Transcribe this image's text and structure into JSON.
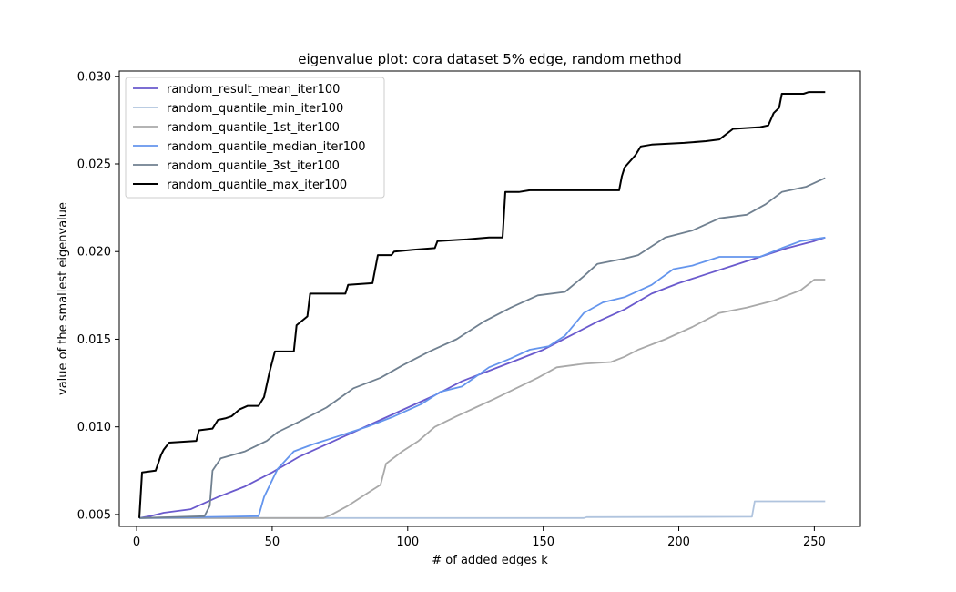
{
  "chart_data": {
    "type": "line",
    "title": "eigenvalue plot: cora dataset 5% edge, random method",
    "xlabel": "# of added edges k",
    "ylabel": "value of the smallest eigenvalue",
    "xlim": [
      -6.4,
      267
    ],
    "ylim": [
      0.00432,
      0.0303
    ],
    "xticks": [
      0,
      50,
      100,
      150,
      200,
      250
    ],
    "yticks": [
      0.005,
      0.01,
      0.015,
      0.02,
      0.025,
      0.03
    ],
    "xtick_labels": [
      "0",
      "50",
      "100",
      "150",
      "200",
      "250"
    ],
    "ytick_labels": [
      "0.005",
      "0.010",
      "0.015",
      "0.020",
      "0.025",
      "0.030"
    ],
    "legend_position": "top-left",
    "series": [
      {
        "name": "random_result_mean_iter100",
        "color": "#6a5acd",
        "points": [
          [
            1,
            0.0048
          ],
          [
            5,
            0.0049
          ],
          [
            10,
            0.0051
          ],
          [
            20,
            0.0053
          ],
          [
            30,
            0.006
          ],
          [
            40,
            0.0066
          ],
          [
            50,
            0.0074
          ],
          [
            60,
            0.0083
          ],
          [
            70,
            0.009
          ],
          [
            80,
            0.0097
          ],
          [
            90,
            0.0104
          ],
          [
            100,
            0.0111
          ],
          [
            110,
            0.0118
          ],
          [
            120,
            0.0126
          ],
          [
            130,
            0.0132
          ],
          [
            140,
            0.0138
          ],
          [
            150,
            0.0144
          ],
          [
            160,
            0.0152
          ],
          [
            170,
            0.016
          ],
          [
            180,
            0.0167
          ],
          [
            190,
            0.0176
          ],
          [
            200,
            0.0182
          ],
          [
            210,
            0.0187
          ],
          [
            220,
            0.0192
          ],
          [
            230,
            0.0197
          ],
          [
            240,
            0.0202
          ],
          [
            250,
            0.0206
          ],
          [
            254,
            0.0208
          ]
        ]
      },
      {
        "name": "random_quantile_min_iter100",
        "color": "#b0c4de",
        "points": [
          [
            1,
            0.0048
          ],
          [
            165,
            0.0048
          ],
          [
            166,
            0.00485
          ],
          [
            227,
            0.00487
          ],
          [
            228,
            0.00575
          ],
          [
            254,
            0.00575
          ]
        ]
      },
      {
        "name": "random_quantile_1st_iter100",
        "color": "#a9a9a9",
        "points": [
          [
            1,
            0.0048
          ],
          [
            69,
            0.0048
          ],
          [
            72,
            0.005
          ],
          [
            78,
            0.0055
          ],
          [
            85,
            0.0062
          ],
          [
            90,
            0.0067
          ],
          [
            92,
            0.0079
          ],
          [
            98,
            0.0086
          ],
          [
            104,
            0.0092
          ],
          [
            110,
            0.01
          ],
          [
            118,
            0.0106
          ],
          [
            125,
            0.0111
          ],
          [
            132,
            0.0116
          ],
          [
            140,
            0.0122
          ],
          [
            148,
            0.0128
          ],
          [
            155,
            0.0134
          ],
          [
            165,
            0.0136
          ],
          [
            175,
            0.0137
          ],
          [
            180,
            0.014
          ],
          [
            185,
            0.0144
          ],
          [
            195,
            0.015
          ],
          [
            205,
            0.0157
          ],
          [
            215,
            0.0165
          ],
          [
            225,
            0.0168
          ],
          [
            235,
            0.0172
          ],
          [
            240,
            0.0175
          ],
          [
            245,
            0.0178
          ],
          [
            250,
            0.0184
          ],
          [
            254,
            0.0184
          ]
        ]
      },
      {
        "name": "random_quantile_median_iter100",
        "color": "#6495ed",
        "points": [
          [
            1,
            0.0048
          ],
          [
            45,
            0.0049
          ],
          [
            47,
            0.006
          ],
          [
            52,
            0.0076
          ],
          [
            58,
            0.0086
          ],
          [
            65,
            0.009
          ],
          [
            75,
            0.0095
          ],
          [
            85,
            0.01
          ],
          [
            95,
            0.0106
          ],
          [
            105,
            0.0113
          ],
          [
            112,
            0.012
          ],
          [
            120,
            0.0123
          ],
          [
            130,
            0.0134
          ],
          [
            138,
            0.0139
          ],
          [
            145,
            0.0144
          ],
          [
            152,
            0.0146
          ],
          [
            158,
            0.0152
          ],
          [
            165,
            0.0165
          ],
          [
            172,
            0.0171
          ],
          [
            180,
            0.0174
          ],
          [
            190,
            0.0181
          ],
          [
            198,
            0.019
          ],
          [
            205,
            0.0192
          ],
          [
            215,
            0.0197
          ],
          [
            230,
            0.0197
          ],
          [
            238,
            0.0202
          ],
          [
            245,
            0.0206
          ],
          [
            254,
            0.0208
          ]
        ]
      },
      {
        "name": "random_quantile_3st_iter100",
        "color": "#708090",
        "points": [
          [
            1,
            0.0048
          ],
          [
            25,
            0.0049
          ],
          [
            27,
            0.0055
          ],
          [
            28,
            0.0075
          ],
          [
            31,
            0.0082
          ],
          [
            40,
            0.0086
          ],
          [
            48,
            0.0092
          ],
          [
            52,
            0.0097
          ],
          [
            60,
            0.0103
          ],
          [
            70,
            0.0111
          ],
          [
            80,
            0.0122
          ],
          [
            90,
            0.0128
          ],
          [
            98,
            0.0135
          ],
          [
            108,
            0.0143
          ],
          [
            118,
            0.015
          ],
          [
            128,
            0.016
          ],
          [
            138,
            0.0168
          ],
          [
            148,
            0.0175
          ],
          [
            158,
            0.0177
          ],
          [
            165,
            0.0186
          ],
          [
            170,
            0.0193
          ],
          [
            180,
            0.0196
          ],
          [
            185,
            0.0198
          ],
          [
            195,
            0.0208
          ],
          [
            205,
            0.0212
          ],
          [
            215,
            0.0219
          ],
          [
            225,
            0.0221
          ],
          [
            232,
            0.0227
          ],
          [
            238,
            0.0234
          ],
          [
            247,
            0.0237
          ],
          [
            254,
            0.0242
          ]
        ]
      },
      {
        "name": "random_quantile_max_iter100",
        "color": "#000000",
        "points": [
          [
            1,
            0.0048
          ],
          [
            2,
            0.0074
          ],
          [
            7,
            0.0075
          ],
          [
            9,
            0.0084
          ],
          [
            10,
            0.0087
          ],
          [
            12,
            0.0091
          ],
          [
            22,
            0.0092
          ],
          [
            23,
            0.0098
          ],
          [
            28,
            0.0099
          ],
          [
            30,
            0.0104
          ],
          [
            33,
            0.0105
          ],
          [
            35,
            0.0106
          ],
          [
            38,
            0.011
          ],
          [
            41,
            0.0112
          ],
          [
            45,
            0.0112
          ],
          [
            47,
            0.0117
          ],
          [
            49,
            0.0131
          ],
          [
            51,
            0.0143
          ],
          [
            58,
            0.0143
          ],
          [
            59,
            0.0158
          ],
          [
            63,
            0.0163
          ],
          [
            64,
            0.0176
          ],
          [
            77,
            0.0176
          ],
          [
            78,
            0.0181
          ],
          [
            87,
            0.0182
          ],
          [
            89,
            0.0198
          ],
          [
            94,
            0.0198
          ],
          [
            95,
            0.02
          ],
          [
            102,
            0.0201
          ],
          [
            110,
            0.0202
          ],
          [
            111,
            0.0206
          ],
          [
            122,
            0.0207
          ],
          [
            130,
            0.0208
          ],
          [
            135,
            0.0208
          ],
          [
            136,
            0.0234
          ],
          [
            141,
            0.0234
          ],
          [
            145,
            0.0235
          ],
          [
            178,
            0.0235
          ],
          [
            179,
            0.0243
          ],
          [
            180,
            0.0248
          ],
          [
            184,
            0.0255
          ],
          [
            186,
            0.026
          ],
          [
            190,
            0.0261
          ],
          [
            202,
            0.0262
          ],
          [
            210,
            0.0263
          ],
          [
            215,
            0.0264
          ],
          [
            220,
            0.027
          ],
          [
            230,
            0.0271
          ],
          [
            233,
            0.0272
          ],
          [
            235,
            0.0279
          ],
          [
            237,
            0.0282
          ],
          [
            238,
            0.029
          ],
          [
            246,
            0.029
          ],
          [
            248,
            0.0291
          ],
          [
            254,
            0.0291
          ]
        ]
      }
    ]
  }
}
